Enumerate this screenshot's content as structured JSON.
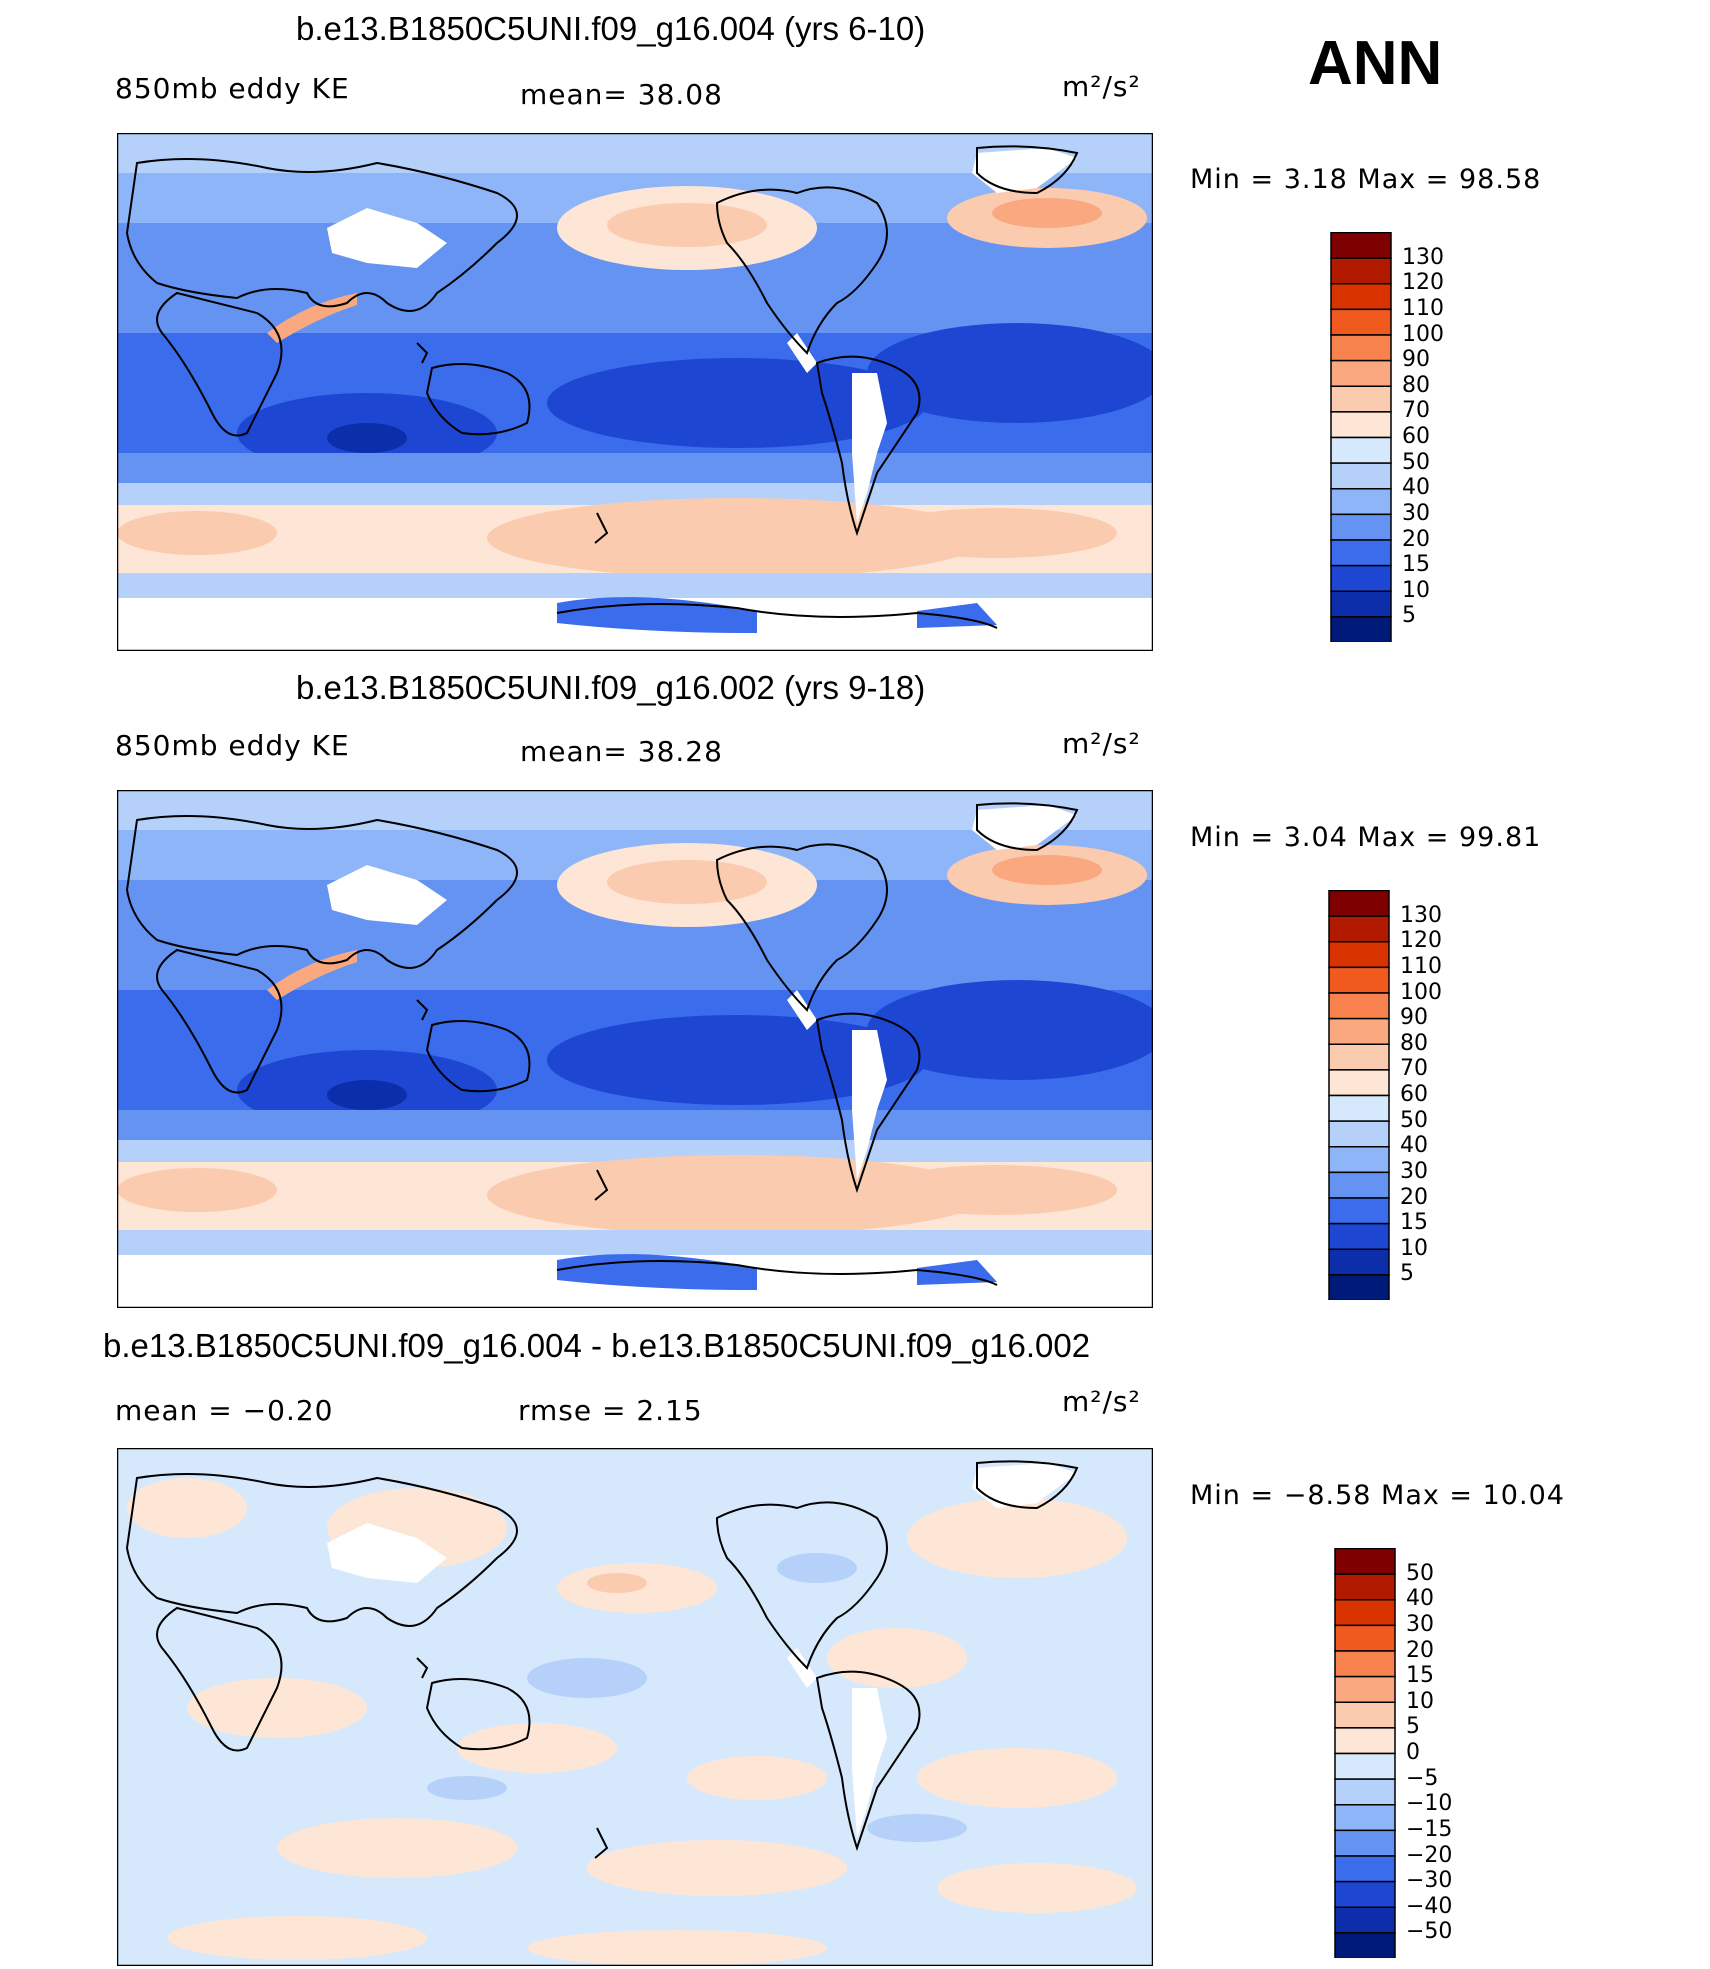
{
  "season": "ANN",
  "panels": [
    {
      "title": "b.e13.B1850C5UNI.f09_g16.004 (yrs 6-10)",
      "left": "850mb eddy KE",
      "center": "mean=   38.08",
      "units": "m²/s²",
      "minmax": "Min =    3.18  Max =    98.58"
    },
    {
      "title": "b.e13.B1850C5UNI.f09_g16.002 (yrs 9-18)",
      "left": "850mb eddy KE",
      "center": "mean=   38.28",
      "units": "m²/s²",
      "minmax": "Min =    3.04  Max =    99.81"
    },
    {
      "title": "b.e13.B1850C5UNI.f09_g16.004 - b.e13.B1850C5UNI.f09_g16.002",
      "left": "mean  =   −0.20",
      "center": "rmse  =     2.15",
      "units": "m²/s²",
      "minmax": "Min =   −8.58  Max =    10.04"
    }
  ],
  "colorbars": [
    {
      "labels": [
        "130",
        "120",
        "110",
        "100",
        "90",
        "80",
        "70",
        "60",
        "50",
        "40",
        "30",
        "20",
        "15",
        "10",
        "5"
      ],
      "colors": [
        "#7f0000",
        "#b21a00",
        "#d93300",
        "#f05a1e",
        "#f7824e",
        "#f9a880",
        "#fbcbb0",
        "#fde6d6",
        "#d6e8fb",
        "#b5d1fa",
        "#8eb5f7",
        "#6593f2",
        "#3a6ceb",
        "#1d46d3",
        "#0d2eaa",
        "#001a7a"
      ]
    },
    {
      "labels": [
        "130",
        "120",
        "110",
        "100",
        "90",
        "80",
        "70",
        "60",
        "50",
        "40",
        "30",
        "20",
        "15",
        "10",
        "5"
      ],
      "colors": [
        "#7f0000",
        "#b21a00",
        "#d93300",
        "#f05a1e",
        "#f7824e",
        "#f9a880",
        "#fbcbb0",
        "#fde6d6",
        "#d6e8fb",
        "#b5d1fa",
        "#8eb5f7",
        "#6593f2",
        "#3a6ceb",
        "#1d46d3",
        "#0d2eaa",
        "#001a7a"
      ]
    },
    {
      "labels": [
        "50",
        "40",
        "30",
        "20",
        "15",
        "10",
        "5",
        "0",
        "−5",
        "−10",
        "−15",
        "−20",
        "−30",
        "−40",
        "−50"
      ],
      "colors": [
        "#7f0000",
        "#b21a00",
        "#d93300",
        "#f05a1e",
        "#f7824e",
        "#f9a880",
        "#fbcbb0",
        "#fde6d6",
        "#d6e8fb",
        "#b5d1fa",
        "#8eb5f7",
        "#6593f2",
        "#3a6ceb",
        "#1d46d3",
        "#0d2eaa",
        "#001a7a"
      ]
    }
  ],
  "chart_data": [
    {
      "type": "heatmap",
      "title": "b.e13.B1850C5UNI.f09_g16.004 (yrs 6-10)",
      "variable": "850mb eddy KE",
      "units": "m²/s²",
      "mean": 38.08,
      "min": 3.18,
      "max": 98.58,
      "levels": [
        5,
        10,
        15,
        20,
        30,
        40,
        50,
        60,
        70,
        80,
        90,
        100,
        110,
        120,
        130
      ]
    },
    {
      "type": "heatmap",
      "title": "b.e13.B1850C5UNI.f09_g16.002 (yrs 9-18)",
      "variable": "850mb eddy KE",
      "units": "m²/s²",
      "mean": 38.28,
      "min": 3.04,
      "max": 99.81,
      "levels": [
        5,
        10,
        15,
        20,
        30,
        40,
        50,
        60,
        70,
        80,
        90,
        100,
        110,
        120,
        130
      ]
    },
    {
      "type": "heatmap",
      "title": "b.e13.B1850C5UNI.f09_g16.004 - b.e13.B1850C5UNI.f09_g16.002",
      "units": "m²/s²",
      "mean": -0.2,
      "rmse": 2.15,
      "min": -8.58,
      "max": 10.04,
      "levels": [
        -50,
        -40,
        -30,
        -20,
        -15,
        -10,
        -5,
        0,
        5,
        10,
        15,
        20,
        30,
        40,
        50
      ]
    }
  ]
}
